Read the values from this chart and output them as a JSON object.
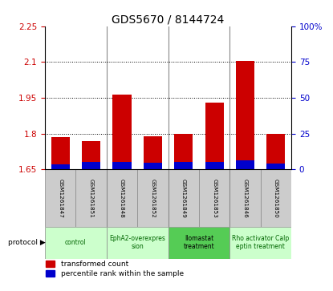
{
  "title": "GDS5670 / 8144724",
  "samples": [
    "GSM1261847",
    "GSM1261851",
    "GSM1261848",
    "GSM1261852",
    "GSM1261849",
    "GSM1261853",
    "GSM1261846",
    "GSM1261850"
  ],
  "red_values": [
    1.785,
    1.77,
    1.963,
    1.79,
    1.8,
    1.93,
    2.105,
    1.8
  ],
  "blue_percentiles": [
    3.5,
    5.0,
    5.5,
    4.5,
    5.0,
    5.5,
    6.5,
    4.0
  ],
  "ymin": 1.65,
  "ymax": 2.25,
  "y2min": 0,
  "y2max": 100,
  "yticks": [
    1.65,
    1.8,
    1.95,
    2.1,
    2.25
  ],
  "ytick_labels": [
    "1.65",
    "1.8",
    "1.95",
    "2.1",
    "2.25"
  ],
  "y2ticks": [
    0,
    25,
    50,
    75,
    100
  ],
  "y2tick_labels": [
    "0",
    "25",
    "50",
    "75",
    "100%"
  ],
  "dotted_lines": [
    1.8,
    1.95,
    2.1
  ],
  "groups": [
    {
      "label": "control",
      "indices": [
        0,
        1
      ],
      "color": "#ccffcc",
      "text_color": "#006600"
    },
    {
      "label": "EphA2-overexpres\nsion",
      "indices": [
        2,
        3
      ],
      "color": "#ccffcc",
      "text_color": "#006600"
    },
    {
      "label": "Ilomastat\ntreatment",
      "indices": [
        4,
        5
      ],
      "color": "#55cc55",
      "text_color": "#000000"
    },
    {
      "label": "Rho activator Calp\neptin treatment",
      "indices": [
        6,
        7
      ],
      "color": "#ccffcc",
      "text_color": "#006600"
    }
  ],
  "bar_color": "#cc0000",
  "blue_color": "#0000cc",
  "bar_width": 0.6,
  "protocol_label": "protocol",
  "legend_red": "transformed count",
  "legend_blue": "percentile rank within the sample",
  "bg_color": "#ffffff",
  "label_color_red": "#cc0000",
  "label_color_blue": "#0000cc",
  "tick_label_size": 7.5,
  "title_size": 10,
  "sample_box_color": "#cccccc",
  "sample_box_edge": "#888888"
}
